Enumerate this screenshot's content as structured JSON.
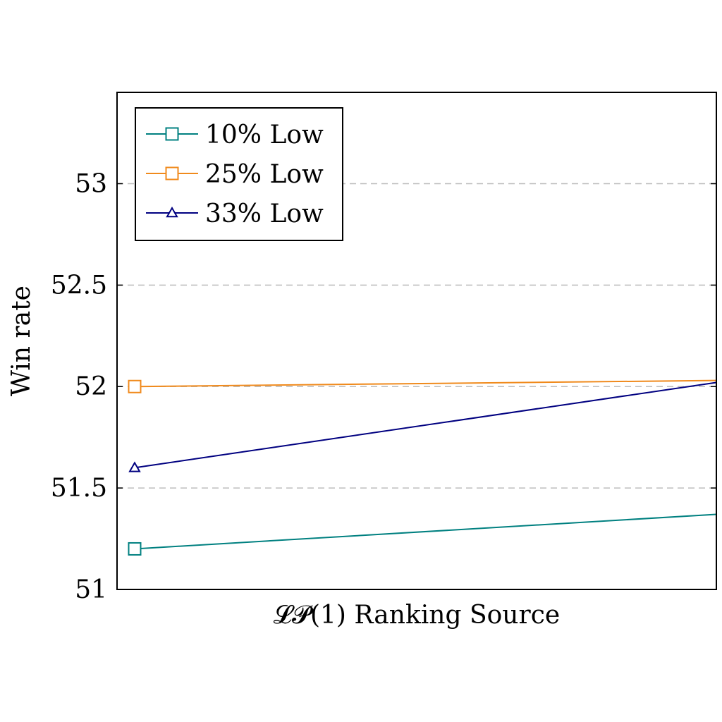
{
  "chart_data": {
    "type": "line",
    "title": "",
    "xlabel": "𝓛𝓟(1) Ranking Source",
    "ylabel": "Win rate",
    "ylim": [
      51,
      53.45
    ],
    "yticks": [
      {
        "value": 51,
        "label": "51"
      },
      {
        "value": 51.5,
        "label": "51.5"
      },
      {
        "value": 52,
        "label": "52"
      },
      {
        "value": 52.5,
        "label": "52.5"
      },
      {
        "value": 53,
        "label": "53"
      }
    ],
    "grid": "horizontal dashed",
    "legend_position": "top-left",
    "x": [
      0,
      1
    ],
    "series": [
      {
        "name": "10% Low",
        "color": "#008080",
        "marker": "square",
        "values": [
          51.2,
          51.37
        ]
      },
      {
        "name": "25% Low",
        "color": "#f08a1c",
        "marker": "square",
        "values": [
          52.0,
          52.03
        ]
      },
      {
        "name": "33% Low",
        "color": "#000080",
        "marker": "triangle",
        "values": [
          51.6,
          52.02
        ]
      }
    ]
  }
}
